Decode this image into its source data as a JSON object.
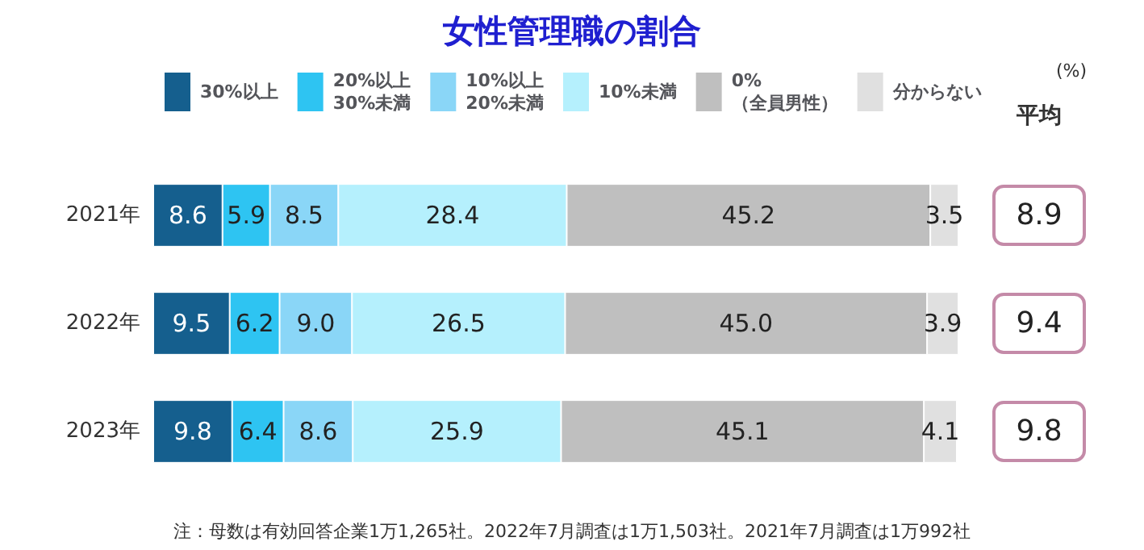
{
  "chart_data": {
    "type": "bar",
    "orientation": "horizontal",
    "stacked": true,
    "title": "女性管理職の割合",
    "categories": [
      "2021年",
      "2022年",
      "2023年"
    ],
    "legend": "top",
    "tick_labels": "y",
    "grid": false,
    "series": [
      {
        "name": "30%以上",
        "color": "#155f8e",
        "values": [
          8.6,
          9.5,
          9.8
        ],
        "value_labels": [
          "8.6",
          "9.5",
          "9.8"
        ]
      },
      {
        "name": "20%以上\n30%未満",
        "color": "#2ec4f2",
        "values": [
          5.9,
          6.2,
          6.4
        ],
        "value_labels": [
          "5.9",
          "6.2",
          "6.4"
        ]
      },
      {
        "name": "10%以上\n20%未満",
        "color": "#8ad6f7",
        "values": [
          8.5,
          9.0,
          8.6
        ],
        "value_labels": [
          "8.5",
          "9.0",
          "8.6"
        ]
      },
      {
        "name": "10%未満",
        "color": "#b5f0fd",
        "values": [
          28.4,
          26.5,
          25.9
        ],
        "value_labels": [
          "28.4",
          "26.5",
          "25.9"
        ]
      },
      {
        "name": "0%\n（全員男性）",
        "color": "#bfbfbf",
        "values": [
          45.2,
          45.0,
          45.1
        ],
        "value_labels": [
          "45.2",
          "45.0",
          "45.1"
        ]
      },
      {
        "name": "分からない",
        "color": "#e0e0e0",
        "values": [
          3.5,
          3.9,
          4.1
        ],
        "value_labels": [
          "3.5",
          "3.9",
          "4.1"
        ]
      }
    ],
    "annotations": [
      "(%)",
      "平均",
      "8.9",
      "9.4",
      "9.8",
      "注：母数は有効回答企業1万1,265社。2022年7月調査は1万1,503社。2021年7月調査は1万992社"
    ]
  }
}
